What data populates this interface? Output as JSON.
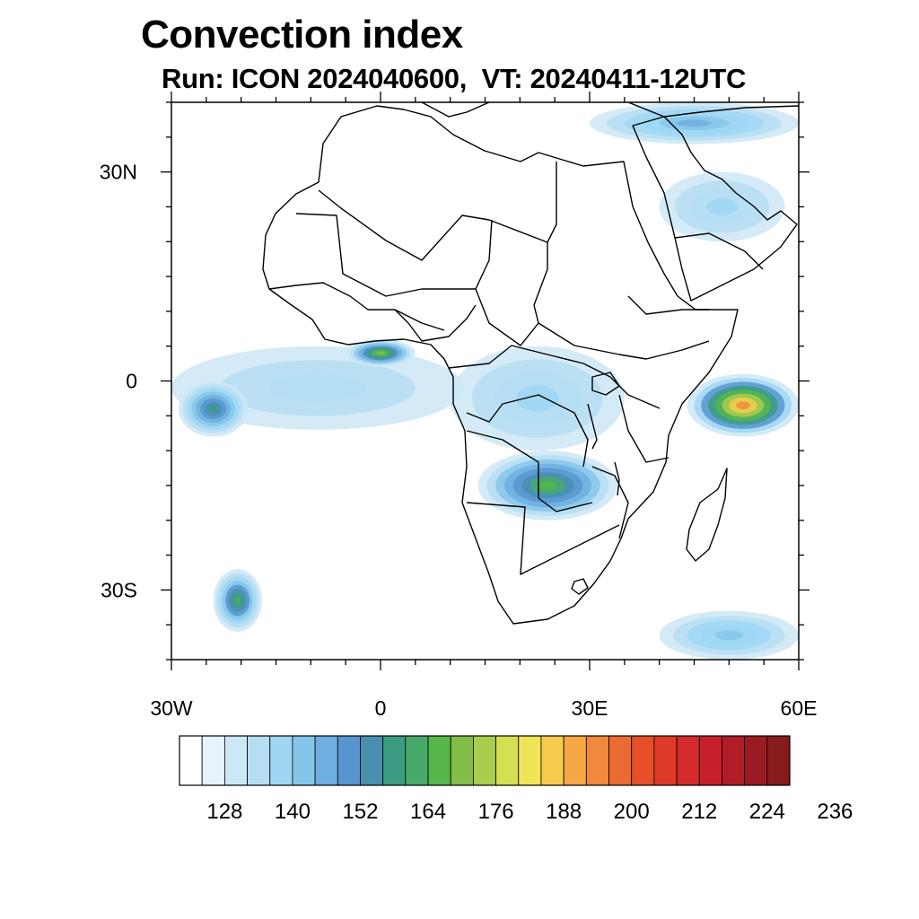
{
  "title": "Convection index",
  "subtitle": "Run: ICON 2024040600,  VT: 20240411-12UTC",
  "map": {
    "projection": "cylindrical-equidistant",
    "lon_range": [
      -30,
      60
    ],
    "lat_range": [
      -40,
      40
    ],
    "lat_labels": [
      {
        "lat": 30,
        "text": "30N"
      },
      {
        "lat": 0,
        "text": "0"
      },
      {
        "lat": -30,
        "text": "30S"
      }
    ],
    "lon_labels": [
      {
        "lon": -30,
        "text": "30W"
      },
      {
        "lon": 0,
        "text": "0"
      },
      {
        "lon": 30,
        "text": "30E"
      },
      {
        "lon": 60,
        "text": "60E"
      }
    ],
    "minor_lat_ticks": [
      -40,
      -35,
      -25,
      -20,
      -15,
      -10,
      -5,
      5,
      10,
      15,
      20,
      25,
      35,
      40
    ],
    "minor_lon_ticks": [
      -25,
      -20,
      -15,
      -10,
      -5,
      5,
      10,
      15,
      20,
      25,
      35,
      40,
      45,
      50,
      55
    ],
    "field_regions": [
      {
        "name": "gulf-of-guinea-band",
        "lon": [
          -30,
          12
        ],
        "lat": [
          -7,
          5
        ],
        "level": 3
      },
      {
        "name": "atlantic-west-core",
        "lon": [
          -29,
          -19
        ],
        "lat": [
          -8,
          0
        ],
        "level": 9
      },
      {
        "name": "ghana-nigeria-coast",
        "lon": [
          -5,
          5
        ],
        "lat": [
          2,
          6
        ],
        "level": 12
      },
      {
        "name": "congo-basin",
        "lon": [
          10,
          35
        ],
        "lat": [
          -10,
          5
        ],
        "level": 4
      },
      {
        "name": "angola-zambia-core",
        "lon": [
          14,
          34
        ],
        "lat": [
          -20,
          -10
        ],
        "level": 11
      },
      {
        "name": "indian-ocean-core",
        "lon": [
          44,
          60
        ],
        "lat": [
          -8,
          1
        ],
        "level": 18
      },
      {
        "name": "south-atlantic-cyclone",
        "lon": [
          -24,
          -17
        ],
        "lat": [
          -36,
          -27
        ],
        "level": 10
      },
      {
        "name": "red-sea-east-med",
        "lon": [
          30,
          60
        ],
        "lat": [
          34,
          40
        ],
        "level": 6
      },
      {
        "name": "arabian-gulf",
        "lon": [
          40,
          58
        ],
        "lat": [
          20,
          30
        ],
        "level": 4
      },
      {
        "name": "southern-indian-ocean",
        "lon": [
          40,
          60
        ],
        "lat": [
          -40,
          -33
        ],
        "level": 5
      }
    ]
  },
  "colorbar": {
    "tick_labels": [
      "128",
      "140",
      "152",
      "164",
      "176",
      "188",
      "200",
      "212",
      "224",
      "236"
    ],
    "colors": [
      "#ffffff",
      "#e6f3fb",
      "#cce8f6",
      "#b6def3",
      "#9fd7f3",
      "#86c5ea",
      "#6dafe0",
      "#5795cf",
      "#4a8fb0",
      "#3b9c81",
      "#48aa6a",
      "#57b64a",
      "#82bd47",
      "#aacd4d",
      "#d4e054",
      "#f0e558",
      "#f6cc4f",
      "#f6a844",
      "#f1893c",
      "#eb6a31",
      "#e5502a",
      "#de3a28",
      "#d42b2b",
      "#c5202c",
      "#b01c28",
      "#9c1a22",
      "#861a1c"
    ]
  }
}
